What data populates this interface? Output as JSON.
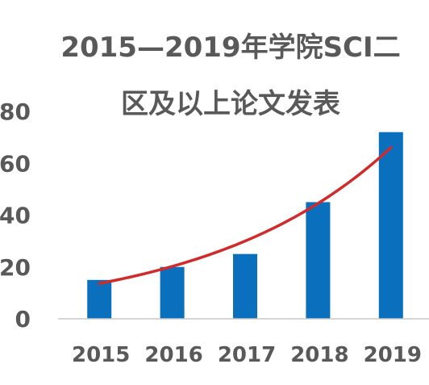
{
  "chart_data": {
    "type": "bar",
    "title_line1": "2015—2019年学院SCI二",
    "title_line2": "区及以上论文发表",
    "categories": [
      "2015",
      "2016",
      "2017",
      "2018",
      "2019"
    ],
    "values": [
      15,
      20,
      25,
      45,
      72
    ],
    "ylim": [
      0,
      80
    ],
    "y_ticks": [
      "0",
      "20",
      "40",
      "60",
      "80"
    ],
    "grid": false,
    "legend": "none",
    "trendline": {
      "type": "exponential",
      "color": "#d12a2a"
    },
    "colors": {
      "bar": "#0a6fbd",
      "axis": "#c9c9c9",
      "text": "#595959"
    }
  }
}
